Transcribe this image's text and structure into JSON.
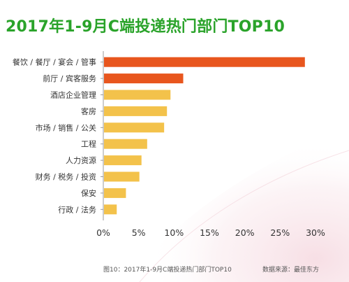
{
  "title": "2017年1-9月C端投递热门部门TOP10",
  "caption": "图10：2017年1-9月C端投递热门部门TOP10",
  "source": "数据来源：最佳东方",
  "colors": {
    "title": "#2aa32a",
    "highlight_bar": "#e8561e",
    "normal_bar": "#f3c24b",
    "axis": "#9a9a9a",
    "text": "#333333"
  },
  "chart_data": {
    "type": "bar",
    "orientation": "horizontal",
    "title": "2017年1-9月C端投递热门部门TOP10",
    "categories": [
      "餐饮 / 餐厅 / 宴会 / 管事",
      "前厅 / 宾客服务",
      "酒店企业管理",
      "客房",
      "市场 / 销售 / 公关",
      "工程",
      "人力资源",
      "财务 / 税务 / 投资",
      "保安",
      "行政 / 法务"
    ],
    "values": [
      28.5,
      11.3,
      9.5,
      9.0,
      8.6,
      6.2,
      5.4,
      5.1,
      3.2,
      1.9
    ],
    "highlight": [
      true,
      true,
      false,
      false,
      false,
      false,
      false,
      false,
      false,
      false
    ],
    "xlim": [
      0,
      30
    ],
    "xticks": [
      0,
      5,
      10,
      15,
      20,
      25,
      30
    ],
    "xtick_labels": [
      "0%",
      "5%",
      "10%",
      "15%",
      "20%",
      "25%",
      "30%"
    ],
    "grid": false
  }
}
